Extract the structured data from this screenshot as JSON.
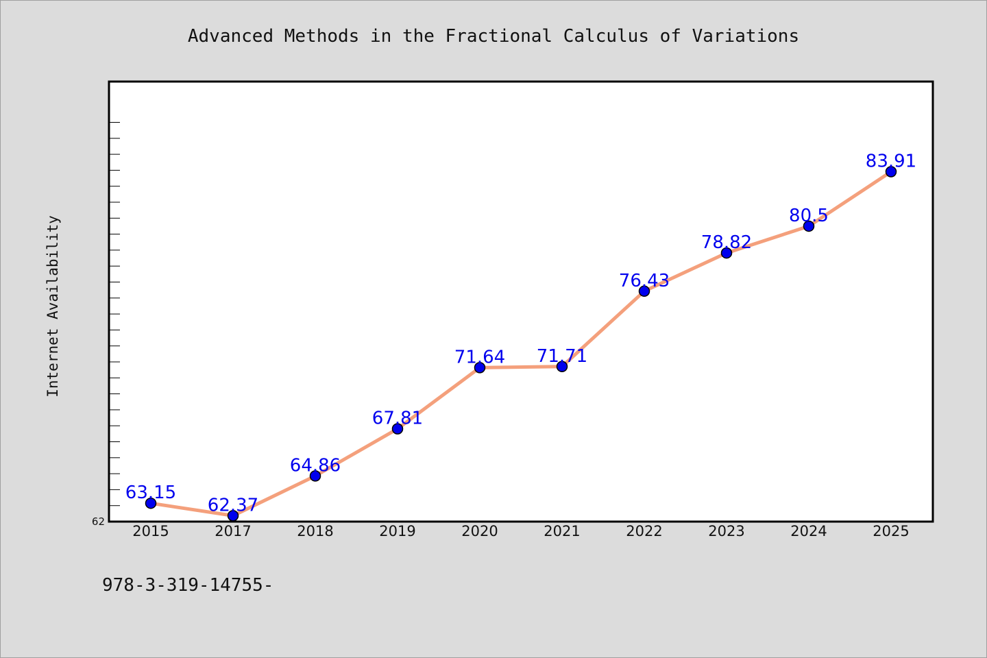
{
  "chart_data": {
    "type": "line",
    "title": "Advanced Methods in the Fractional Calculus of Variations",
    "xlabel": "",
    "ylabel": "Internet Availability",
    "categories": [
      "2015",
      "2017",
      "2018",
      "2019",
      "2020",
      "2021",
      "2022",
      "2023",
      "2024",
      "2025"
    ],
    "series": [
      {
        "values": [
          63.15,
          62.37,
          64.86,
          67.81,
          71.64,
          71.71,
          76.43,
          78.82,
          80.5,
          83.91
        ],
        "labels": [
          "63.15",
          "62.37",
          "64.86",
          "67.81",
          "71.64",
          "71.71",
          "76.43",
          "78.82",
          "80.5",
          "83.91"
        ]
      }
    ],
    "ylim": [
      62,
      88
    ],
    "yticks_labeled": [
      "62"
    ],
    "grid": false,
    "legend": "none",
    "colors": {
      "line": "#f4a07c",
      "marker": "#0000ee",
      "label": "#0000ee",
      "plot_background": "#ffffff",
      "page_background": "#dcdcdc"
    }
  },
  "footer": {
    "isbn_text": "978-3-319-14755-"
  }
}
